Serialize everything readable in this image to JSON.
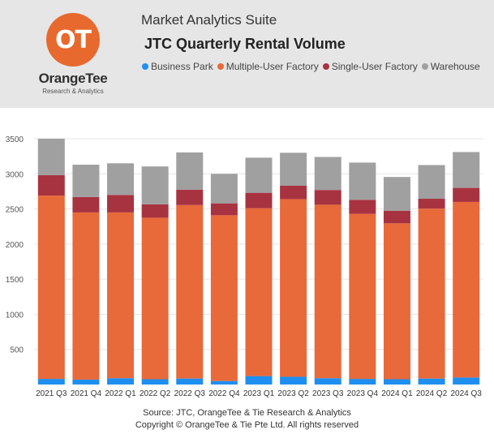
{
  "header": {
    "logo_glyph": "OT",
    "brand_name": "OrangeTee",
    "brand_sub": "Research & Analytics",
    "suite_title": "Market Analytics Suite",
    "chart_title": "JTC Quarterly Rental Volume"
  },
  "colors": {
    "header_bg": "#e6e6e6",
    "logo": "#e8692d",
    "business_park": "#1e8ff0",
    "multiple_user_factory": "#e8693a",
    "single_user_factory": "#a83340",
    "warehouse": "#a0a0a0",
    "gridline": "#e5e5e5"
  },
  "legend": [
    {
      "label": "Business Park",
      "color": "#1e8ff0"
    },
    {
      "label": "Multiple-User Factory",
      "color": "#e8693a"
    },
    {
      "label": "Single-User Factory",
      "color": "#a83340"
    },
    {
      "label": "Warehouse",
      "color": "#a0a0a0"
    }
  ],
  "chart_data": {
    "type": "bar",
    "stacked": true,
    "categories": [
      "2021 Q3",
      "2021 Q4",
      "2022 Q1",
      "2022 Q2",
      "2022 Q3",
      "2022 Q4",
      "2023 Q1",
      "2023 Q2",
      "2023 Q3",
      "2023 Q4",
      "2024 Q1",
      "2024 Q2",
      "2024 Q3"
    ],
    "series": [
      {
        "name": "Business Park",
        "color": "#1e8ff0",
        "values": [
          80,
          70,
          90,
          75,
          85,
          50,
          120,
          110,
          90,
          80,
          75,
          85,
          100
        ]
      },
      {
        "name": "Multiple-User Factory",
        "color": "#e8693a",
        "values": [
          2610,
          2380,
          2360,
          2300,
          2470,
          2360,
          2390,
          2530,
          2470,
          2350,
          2220,
          2420,
          2500
        ]
      },
      {
        "name": "Single-User Factory",
        "color": "#a83340",
        "values": [
          290,
          220,
          250,
          190,
          220,
          170,
          220,
          190,
          210,
          200,
          180,
          140,
          200
        ]
      },
      {
        "name": "Warehouse",
        "color": "#a0a0a0",
        "values": [
          520,
          460,
          450,
          540,
          530,
          420,
          500,
          470,
          470,
          530,
          480,
          480,
          510
        ]
      }
    ],
    "ylim": [
      0,
      3500
    ],
    "yticks": [
      500,
      1000,
      1500,
      2000,
      2500,
      3000,
      3500
    ],
    "grid": true,
    "legend_position": "top"
  },
  "footer": {
    "source": "Source: JTC, OrangeTee & Tie Research & Analytics",
    "copyright": "Copyright © OrangeTee & Tie Pte Ltd. All rights reserved"
  }
}
